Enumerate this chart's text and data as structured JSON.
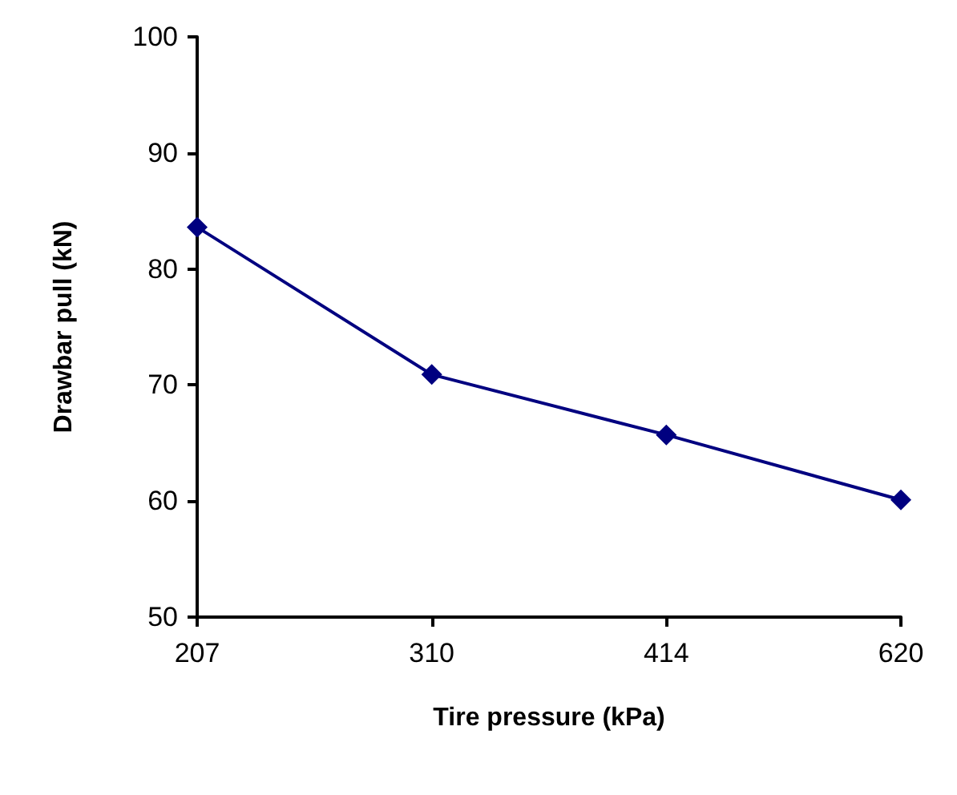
{
  "chart_data": {
    "type": "line",
    "xlabel": "Tire pressure (kPa)",
    "ylabel": "Drawbar pull (kN)",
    "categories": [
      "207",
      "310",
      "414",
      "620"
    ],
    "series": [
      {
        "color": "#000080",
        "values": [
          83.6,
          70.9,
          65.7,
          60.1
        ]
      }
    ],
    "ylim": [
      50,
      100
    ],
    "yticks": [
      50,
      60,
      70,
      80,
      90,
      100
    ],
    "grid": false,
    "marker": "diamond",
    "line_style": "solid"
  }
}
